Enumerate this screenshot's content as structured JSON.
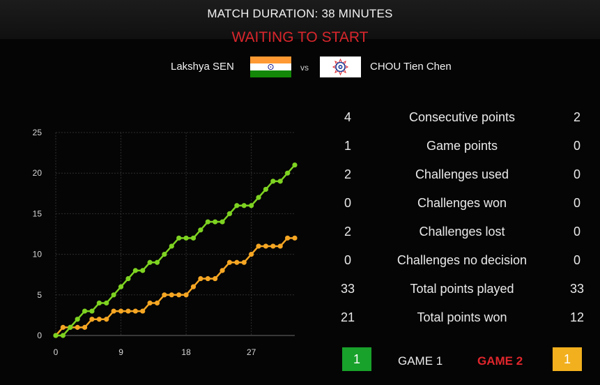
{
  "header": {
    "match_duration": "MATCH DURATION: 38 MINUTES",
    "status": "WAITING TO START"
  },
  "players": {
    "left": {
      "name": "Lakshya SEN",
      "flag": "india-flag-icon"
    },
    "vs": "vs",
    "right": {
      "name": "CHOU Tien Chen",
      "flag": "chinese-taipei-flag-icon"
    }
  },
  "stats": [
    {
      "left": "4",
      "label": "Consecutive points",
      "right": "2"
    },
    {
      "left": "1",
      "label": "Game points",
      "right": "0"
    },
    {
      "left": "2",
      "label": "Challenges used",
      "right": "0"
    },
    {
      "left": "0",
      "label": "Challenges won",
      "right": "0"
    },
    {
      "left": "2",
      "label": "Challenges lost",
      "right": "0"
    },
    {
      "left": "0",
      "label": "Challenges no decision",
      "right": "0"
    },
    {
      "left": "33",
      "label": "Total points played",
      "right": "33"
    },
    {
      "left": "21",
      "label": "Total points won",
      "right": "12"
    }
  ],
  "games": {
    "left_score": "1",
    "game1_label": "GAME 1",
    "game2_label": "GAME 2",
    "right_score": "1",
    "colors": {
      "left": "#18a12b",
      "right": "#f2b01e",
      "active": "#e0262c"
    }
  },
  "chart_data": {
    "type": "line",
    "xlim": [
      0,
      33
    ],
    "ylim": [
      0,
      25
    ],
    "x_ticks": [
      0,
      9,
      18,
      27
    ],
    "y_ticks": [
      0,
      5,
      10,
      15,
      20,
      25
    ],
    "grid": true,
    "x": [
      0,
      1,
      2,
      3,
      4,
      5,
      6,
      7,
      8,
      9,
      10,
      11,
      12,
      13,
      14,
      15,
      16,
      17,
      18,
      19,
      20,
      21,
      22,
      23,
      24,
      25,
      26,
      27,
      28,
      29,
      30,
      31,
      32,
      33
    ],
    "series": [
      {
        "color": "#7ed321",
        "values": [
          0,
          0,
          1,
          2,
          3,
          3,
          4,
          4,
          5,
          6,
          7,
          8,
          8,
          9,
          9,
          10,
          11,
          12,
          12,
          12,
          13,
          14,
          14,
          14,
          15,
          16,
          16,
          16,
          17,
          18,
          19,
          19,
          20,
          21
        ]
      },
      {
        "color": "#f5a623",
        "values": [
          0,
          1,
          1,
          1,
          1,
          2,
          2,
          2,
          3,
          3,
          3,
          3,
          3,
          4,
          4,
          5,
          5,
          5,
          5,
          6,
          7,
          7,
          7,
          8,
          9,
          9,
          9,
          10,
          11,
          11,
          11,
          11,
          12,
          12
        ]
      }
    ]
  }
}
